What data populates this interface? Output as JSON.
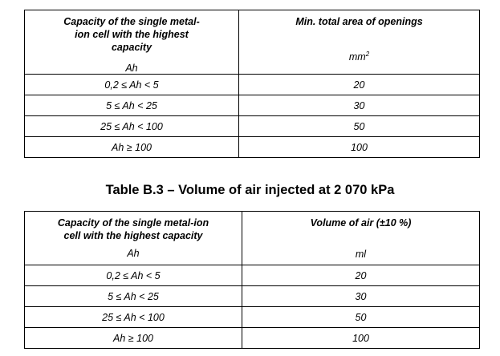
{
  "table1": {
    "headers": [
      {
        "title": "Capacity of the single metal-ion cell with the highest capacity",
        "unit": "Ah"
      },
      {
        "title": "Min. total area of openings",
        "unit": "mm",
        "unit_sup": "2"
      }
    ],
    "rows": [
      [
        "0,2 ≤ Ah < 5",
        "20"
      ],
      [
        "5 ≤ Ah < 25",
        "30"
      ],
      [
        "25 ≤ Ah < 100",
        "50"
      ],
      [
        "Ah ≥ 100",
        "100"
      ]
    ]
  },
  "table2": {
    "caption": "Table B.3 – Volume of air injected at 2 070 kPa",
    "headers": [
      {
        "title": "Capacity of the single metal-ion cell with the highest capacity",
        "unit": "Ah"
      },
      {
        "title": "Volume of air (±10 %)",
        "unit": "ml"
      }
    ],
    "rows": [
      [
        "0,2 ≤ Ah < 5",
        "20"
      ],
      [
        "5 ≤ Ah < 25",
        "30"
      ],
      [
        "25 ≤ Ah < 100",
        "50"
      ],
      [
        "Ah ≥ 100",
        "100"
      ]
    ]
  }
}
